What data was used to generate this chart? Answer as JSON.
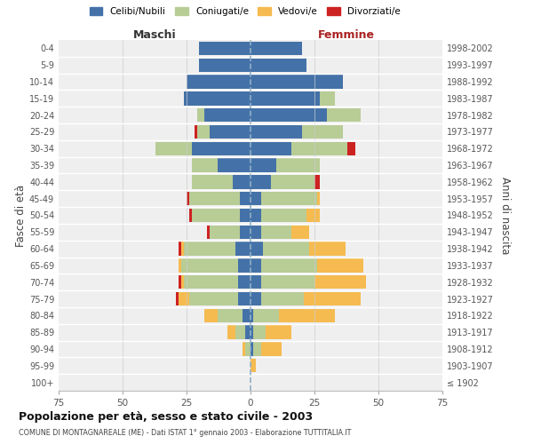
{
  "age_groups": [
    "100+",
    "95-99",
    "90-94",
    "85-89",
    "80-84",
    "75-79",
    "70-74",
    "65-69",
    "60-64",
    "55-59",
    "50-54",
    "45-49",
    "40-44",
    "35-39",
    "30-34",
    "25-29",
    "20-24",
    "15-19",
    "10-14",
    "5-9",
    "0-4"
  ],
  "birth_years": [
    "≤ 1902",
    "1903-1907",
    "1908-1912",
    "1913-1917",
    "1918-1922",
    "1923-1927",
    "1928-1932",
    "1933-1937",
    "1938-1942",
    "1943-1947",
    "1948-1952",
    "1953-1957",
    "1958-1962",
    "1963-1967",
    "1968-1972",
    "1973-1977",
    "1978-1982",
    "1983-1987",
    "1988-1992",
    "1993-1997",
    "1998-2002"
  ],
  "male": {
    "celibi": [
      0,
      0,
      0,
      2,
      3,
      5,
      5,
      5,
      6,
      4,
      4,
      4,
      7,
      13,
      23,
      16,
      18,
      26,
      25,
      20,
      20
    ],
    "coniugati": [
      0,
      0,
      2,
      4,
      10,
      19,
      21,
      22,
      20,
      12,
      19,
      20,
      16,
      10,
      14,
      5,
      3,
      0,
      0,
      0,
      0
    ],
    "vedovi": [
      0,
      0,
      1,
      3,
      5,
      4,
      1,
      1,
      1,
      0,
      0,
      0,
      0,
      0,
      0,
      0,
      0,
      0,
      0,
      0,
      0
    ],
    "divorziati": [
      0,
      0,
      0,
      0,
      0,
      1,
      1,
      0,
      1,
      1,
      1,
      1,
      0,
      0,
      0,
      1,
      0,
      0,
      0,
      0,
      0
    ]
  },
  "female": {
    "nubili": [
      0,
      0,
      1,
      1,
      1,
      4,
      4,
      4,
      5,
      4,
      4,
      4,
      8,
      10,
      16,
      20,
      30,
      27,
      36,
      22,
      20
    ],
    "coniugate": [
      0,
      0,
      3,
      5,
      10,
      17,
      21,
      22,
      18,
      12,
      18,
      22,
      17,
      17,
      22,
      16,
      13,
      6,
      0,
      0,
      0
    ],
    "vedove": [
      0,
      2,
      8,
      10,
      22,
      22,
      20,
      18,
      14,
      7,
      5,
      1,
      0,
      0,
      0,
      0,
      0,
      0,
      0,
      0,
      0
    ],
    "divorziate": [
      0,
      0,
      0,
      0,
      0,
      0,
      0,
      0,
      0,
      0,
      0,
      0,
      2,
      0,
      3,
      0,
      0,
      0,
      0,
      0,
      0
    ]
  },
  "colors": {
    "celibi": "#4472a8",
    "coniugati": "#b8cc96",
    "vedovi": "#f5bb50",
    "divorziati": "#cc2222"
  },
  "xlim": 75,
  "title": "Popolazione per età, sesso e stato civile - 2003",
  "subtitle": "COMUNE DI MONTAGNAREALE (ME) - Dati ISTAT 1° gennaio 2003 - Elaborazione TUTTITALIA.IT",
  "ylabel_left": "Fasce di età",
  "ylabel_right": "Anni di nascita",
  "xlabel_male": "Maschi",
  "xlabel_female": "Femmine",
  "bg_color": "#efefef",
  "bar_height": 0.82
}
